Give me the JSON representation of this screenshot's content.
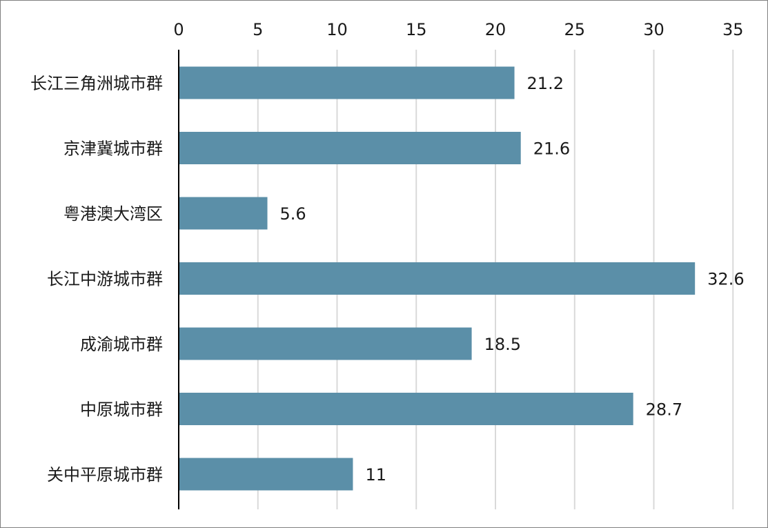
{
  "chart_data": {
    "type": "bar",
    "orientation": "horizontal",
    "categories": [
      "长江三角洲城市群",
      "京津冀城市群",
      "粤港澳大湾区",
      "长江中游城市群",
      "成渝城市群",
      "中原城市群",
      "关中平原城市群"
    ],
    "series": [
      {
        "values": [
          21.2,
          21.6,
          5.6,
          32.6,
          18.5,
          28.7,
          11
        ]
      }
    ],
    "data_labels": [
      "21.2",
      "21.6",
      "5.6",
      "32.6",
      "18.5",
      "28.7",
      "11"
    ],
    "xlim": [
      0,
      35
    ],
    "x_ticks": [
      0,
      5,
      10,
      15,
      20,
      25,
      30,
      35
    ],
    "x_tick_labels": [
      "0",
      "5",
      "10",
      "15",
      "20",
      "25",
      "30",
      "35"
    ],
    "x_axis_position": "top",
    "grid": true,
    "legend": "none",
    "colors": {
      "bar": "#5b8fa8",
      "grid": "#d9d9d9",
      "axis": "#000000",
      "text": "#1a1a1a",
      "border": "#7f7f7f"
    }
  }
}
